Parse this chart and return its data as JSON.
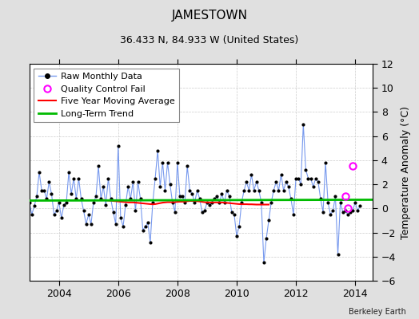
{
  "title": "JAMESTOWN",
  "subtitle": "36.433 N, 84.933 W (United States)",
  "credit": "Berkeley Earth",
  "ylabel": "Temperature Anomaly (°C)",
  "ylim": [
    -6,
    12
  ],
  "yticks": [
    -6,
    -4,
    -2,
    0,
    2,
    4,
    6,
    8,
    10,
    12
  ],
  "xlim": [
    2003.0,
    2014.6
  ],
  "xticks": [
    2004,
    2006,
    2008,
    2010,
    2012,
    2014
  ],
  "bg_color": "#e0e0e0",
  "plot_bg": "#ffffff",
  "raw_color": "#7799ee",
  "raw_dot_color": "#000000",
  "ma_color": "#ff0000",
  "trend_color": "#00bb00",
  "qc_color": "#ff00ff",
  "raw_data": [
    [
      2003.0,
      0.5
    ],
    [
      2003.083,
      -0.5
    ],
    [
      2003.167,
      0.2
    ],
    [
      2003.25,
      1.0
    ],
    [
      2003.333,
      3.0
    ],
    [
      2003.417,
      1.5
    ],
    [
      2003.5,
      1.5
    ],
    [
      2003.583,
      0.8
    ],
    [
      2003.667,
      2.2
    ],
    [
      2003.75,
      1.2
    ],
    [
      2003.833,
      -0.5
    ],
    [
      2003.917,
      -0.2
    ],
    [
      2004.0,
      0.5
    ],
    [
      2004.083,
      -0.8
    ],
    [
      2004.167,
      0.3
    ],
    [
      2004.25,
      0.5
    ],
    [
      2004.333,
      3.0
    ],
    [
      2004.417,
      1.2
    ],
    [
      2004.5,
      2.5
    ],
    [
      2004.583,
      0.8
    ],
    [
      2004.667,
      2.5
    ],
    [
      2004.75,
      0.8
    ],
    [
      2004.833,
      -0.2
    ],
    [
      2004.917,
      -1.3
    ],
    [
      2005.0,
      -0.5
    ],
    [
      2005.083,
      -1.3
    ],
    [
      2005.167,
      0.5
    ],
    [
      2005.25,
      1.0
    ],
    [
      2005.333,
      3.5
    ],
    [
      2005.417,
      0.8
    ],
    [
      2005.5,
      1.8
    ],
    [
      2005.583,
      0.3
    ],
    [
      2005.667,
      2.5
    ],
    [
      2005.75,
      0.8
    ],
    [
      2005.833,
      -0.3
    ],
    [
      2005.917,
      -1.3
    ],
    [
      2006.0,
      5.2
    ],
    [
      2006.083,
      -0.8
    ],
    [
      2006.167,
      -1.5
    ],
    [
      2006.25,
      0.3
    ],
    [
      2006.333,
      1.8
    ],
    [
      2006.417,
      0.8
    ],
    [
      2006.5,
      2.2
    ],
    [
      2006.583,
      -0.2
    ],
    [
      2006.667,
      2.2
    ],
    [
      2006.75,
      0.8
    ],
    [
      2006.833,
      -1.8
    ],
    [
      2006.917,
      -1.5
    ],
    [
      2007.0,
      -1.2
    ],
    [
      2007.083,
      -2.8
    ],
    [
      2007.167,
      0.5
    ],
    [
      2007.25,
      2.5
    ],
    [
      2007.333,
      4.8
    ],
    [
      2007.417,
      1.8
    ],
    [
      2007.5,
      3.8
    ],
    [
      2007.583,
      1.5
    ],
    [
      2007.667,
      3.8
    ],
    [
      2007.75,
      2.0
    ],
    [
      2007.833,
      0.5
    ],
    [
      2007.917,
      -0.3
    ],
    [
      2008.0,
      3.8
    ],
    [
      2008.083,
      1.0
    ],
    [
      2008.167,
      1.0
    ],
    [
      2008.25,
      0.5
    ],
    [
      2008.333,
      3.5
    ],
    [
      2008.417,
      1.5
    ],
    [
      2008.5,
      1.2
    ],
    [
      2008.583,
      0.5
    ],
    [
      2008.667,
      1.5
    ],
    [
      2008.75,
      0.8
    ],
    [
      2008.833,
      -0.3
    ],
    [
      2008.917,
      -0.2
    ],
    [
      2009.0,
      0.5
    ],
    [
      2009.083,
      0.3
    ],
    [
      2009.167,
      0.5
    ],
    [
      2009.25,
      0.8
    ],
    [
      2009.333,
      1.0
    ],
    [
      2009.417,
      0.5
    ],
    [
      2009.5,
      1.2
    ],
    [
      2009.583,
      0.5
    ],
    [
      2009.667,
      1.5
    ],
    [
      2009.75,
      1.0
    ],
    [
      2009.833,
      -0.3
    ],
    [
      2009.917,
      -0.5
    ],
    [
      2010.0,
      -2.3
    ],
    [
      2010.083,
      -1.5
    ],
    [
      2010.167,
      0.5
    ],
    [
      2010.25,
      1.5
    ],
    [
      2010.333,
      2.2
    ],
    [
      2010.417,
      1.5
    ],
    [
      2010.5,
      2.8
    ],
    [
      2010.583,
      1.5
    ],
    [
      2010.667,
      2.2
    ],
    [
      2010.75,
      1.5
    ],
    [
      2010.833,
      0.5
    ],
    [
      2010.917,
      -4.5
    ],
    [
      2011.0,
      -2.5
    ],
    [
      2011.083,
      -1.0
    ],
    [
      2011.167,
      0.5
    ],
    [
      2011.25,
      1.5
    ],
    [
      2011.333,
      2.2
    ],
    [
      2011.417,
      1.5
    ],
    [
      2011.5,
      2.8
    ],
    [
      2011.583,
      1.5
    ],
    [
      2011.667,
      2.2
    ],
    [
      2011.75,
      1.8
    ],
    [
      2011.833,
      0.8
    ],
    [
      2011.917,
      -0.5
    ],
    [
      2012.0,
      2.5
    ],
    [
      2012.083,
      2.5
    ],
    [
      2012.167,
      2.0
    ],
    [
      2012.25,
      7.0
    ],
    [
      2012.333,
      3.2
    ],
    [
      2012.417,
      2.5
    ],
    [
      2012.5,
      2.5
    ],
    [
      2012.583,
      1.8
    ],
    [
      2012.667,
      2.5
    ],
    [
      2012.75,
      2.2
    ],
    [
      2012.833,
      0.8
    ],
    [
      2012.917,
      -0.3
    ],
    [
      2013.0,
      3.8
    ],
    [
      2013.083,
      0.5
    ],
    [
      2013.167,
      -0.5
    ],
    [
      2013.25,
      -0.2
    ],
    [
      2013.333,
      1.0
    ],
    [
      2013.417,
      -3.8
    ],
    [
      2013.5,
      0.5
    ],
    [
      2013.583,
      -0.3
    ],
    [
      2013.667,
      -0.2
    ],
    [
      2013.75,
      -0.5
    ],
    [
      2013.833,
      -0.3
    ],
    [
      2013.917,
      -0.2
    ],
    [
      2014.0,
      0.5
    ],
    [
      2014.083,
      -0.2
    ],
    [
      2014.167,
      0.2
    ]
  ],
  "ma_data": [
    [
      2005.5,
      0.7
    ],
    [
      2005.583,
      0.68
    ],
    [
      2005.667,
      0.66
    ],
    [
      2005.75,
      0.64
    ],
    [
      2005.833,
      0.62
    ],
    [
      2005.917,
      0.6
    ],
    [
      2006.0,
      0.58
    ],
    [
      2006.083,
      0.56
    ],
    [
      2006.167,
      0.54
    ],
    [
      2006.25,
      0.52
    ],
    [
      2006.333,
      0.5
    ],
    [
      2006.417,
      0.5
    ],
    [
      2006.5,
      0.5
    ],
    [
      2006.583,
      0.48
    ],
    [
      2006.667,
      0.46
    ],
    [
      2006.75,
      0.44
    ],
    [
      2006.833,
      0.42
    ],
    [
      2006.917,
      0.4
    ],
    [
      2007.0,
      0.38
    ],
    [
      2007.083,
      0.36
    ],
    [
      2007.167,
      0.34
    ],
    [
      2007.25,
      0.36
    ],
    [
      2007.333,
      0.4
    ],
    [
      2007.417,
      0.44
    ],
    [
      2007.5,
      0.48
    ],
    [
      2007.583,
      0.5
    ],
    [
      2007.667,
      0.52
    ],
    [
      2007.75,
      0.52
    ],
    [
      2007.833,
      0.52
    ],
    [
      2007.917,
      0.52
    ],
    [
      2008.0,
      0.55
    ],
    [
      2008.083,
      0.56
    ],
    [
      2008.167,
      0.56
    ],
    [
      2008.25,
      0.57
    ],
    [
      2008.333,
      0.6
    ],
    [
      2008.417,
      0.62
    ],
    [
      2008.5,
      0.62
    ],
    [
      2008.583,
      0.62
    ],
    [
      2008.667,
      0.6
    ],
    [
      2008.75,
      0.58
    ],
    [
      2008.833,
      0.55
    ],
    [
      2008.917,
      0.52
    ],
    [
      2009.0,
      0.5
    ],
    [
      2009.083,
      0.5
    ],
    [
      2009.167,
      0.5
    ],
    [
      2009.25,
      0.5
    ],
    [
      2009.333,
      0.5
    ],
    [
      2009.417,
      0.5
    ],
    [
      2009.5,
      0.5
    ],
    [
      2009.583,
      0.48
    ],
    [
      2009.667,
      0.46
    ],
    [
      2009.75,
      0.44
    ],
    [
      2009.833,
      0.42
    ],
    [
      2009.917,
      0.4
    ],
    [
      2010.0,
      0.38
    ],
    [
      2010.083,
      0.36
    ],
    [
      2010.167,
      0.35
    ],
    [
      2010.25,
      0.35
    ],
    [
      2010.333,
      0.35
    ],
    [
      2010.417,
      0.34
    ],
    [
      2010.5,
      0.34
    ],
    [
      2010.583,
      0.33
    ],
    [
      2010.667,
      0.32
    ],
    [
      2010.75,
      0.32
    ],
    [
      2010.833,
      0.32
    ],
    [
      2010.917,
      0.32
    ],
    [
      2011.0,
      0.32
    ],
    [
      2011.083,
      0.32
    ]
  ],
  "qc_fail_points": [
    [
      2013.917,
      3.5
    ],
    [
      2013.667,
      1.0
    ],
    [
      2013.75,
      0.0
    ]
  ],
  "trend_x": [
    2003.0,
    2014.6
  ],
  "trend_y": [
    0.65,
    0.72
  ],
  "grid_color": "#cccccc",
  "tick_fontsize": 9,
  "title_fontsize": 11,
  "subtitle_fontsize": 9,
  "legend_fontsize": 8
}
